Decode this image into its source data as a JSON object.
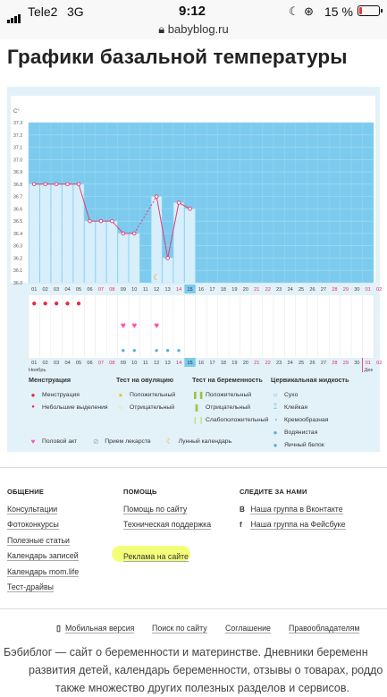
{
  "status": {
    "carrier": "Tele2",
    "network": "3G",
    "time": "9:12",
    "battery": "15 %",
    "battery_level": 0.15,
    "url": "babyblog.ru"
  },
  "page_title": "Графики базальной температуры",
  "chart_data": {
    "type": "bar",
    "ylabel": "C°",
    "ylim": [
      36.0,
      37.3
    ],
    "yticks": [
      "37.3",
      "37.2",
      "37.1",
      "37.0",
      "36.9",
      "36.8",
      "36.7",
      "36.6",
      "36.5",
      "36.4",
      "36.3",
      "36.2",
      "36.1",
      "36.0"
    ],
    "days": [
      "01",
      "02",
      "03",
      "04",
      "05",
      "06",
      "07",
      "08",
      "09",
      "10",
      "11",
      "12",
      "13",
      "14",
      "15",
      "16",
      "17",
      "18",
      "19",
      "20",
      "21",
      "22",
      "23",
      "24",
      "25",
      "26",
      "27",
      "28",
      "29",
      "30",
      "31"
    ],
    "day_labels": [
      "01",
      "02",
      "03",
      "04",
      "05",
      "06",
      "07",
      "08",
      "09",
      "10",
      "11",
      "12",
      "13",
      "14",
      "15",
      "16",
      "17",
      "18",
      "19",
      "20",
      "21",
      "22",
      "23",
      "24",
      "25",
      "26",
      "27",
      "28",
      "29",
      "30",
      "01",
      "02"
    ],
    "month_labels": [
      "Ноябрь",
      "Дек"
    ],
    "today": "15",
    "series": [
      {
        "values": [
          36.8,
          36.8,
          36.8,
          36.8,
          36.8,
          36.5,
          36.5,
          36.5,
          36.4,
          36.4,
          null,
          36.7,
          36.2,
          36.65,
          36.6
        ]
      }
    ],
    "menstruation_days": [
      1,
      2,
      3,
      4,
      5
    ],
    "intercourse_days": [
      9,
      10,
      12
    ],
    "moon_day": 12,
    "drop_days": [
      9,
      10,
      12,
      13,
      14
    ]
  },
  "legend": {
    "menstruation": {
      "title": "Менструация",
      "items": [
        "Менструация",
        "Небольшие выделения"
      ]
    },
    "ovulation": {
      "title": "Тест на овуляцию",
      "items": [
        "Положительный",
        "Отрицательный"
      ]
    },
    "pregnancy": {
      "title": "Тест на беременность",
      "items": [
        "Положительный",
        "Отрицательный",
        "Слабоположительный"
      ]
    },
    "cervical": {
      "title": "Цервикальная жидкость",
      "items": [
        "Сухо",
        "Клейкая",
        "Кремообразная",
        "Водянистая",
        "Яичный белок"
      ]
    },
    "bottom": [
      "Половой акт",
      "Прием лекарств",
      "Лунный календарь"
    ]
  },
  "footer": {
    "general": {
      "title": "ОБЩЕНИЕ",
      "links": [
        "Консультации",
        "Фотоконкурсы",
        "Полезные статьи",
        "Календарь записей",
        "Календарь mom.life",
        "Тест-драйвы"
      ]
    },
    "help": {
      "title": "ПОМОЩЬ",
      "links": [
        "Помощь по сайту",
        "Техническая поддержка",
        "Реклама на сайте"
      ]
    },
    "follow": {
      "title": "СЛЕДИТЕ ЗА НАМИ",
      "links": [
        "Наша группа в Вконтакте",
        "Наша группа на Фейсбуке"
      ]
    },
    "bottom_links": [
      "Мобильная версия",
      "Поиск по сайту",
      "Соглашение",
      "Правообладателям"
    ],
    "description": [
      "Бэбиблог — сайт о беременности и материнстве. Дневники беременн",
      "развития детей, календарь беременности, отзывы о товарах, роддо",
      "также множество других полезных разделов и сервисов."
    ]
  }
}
